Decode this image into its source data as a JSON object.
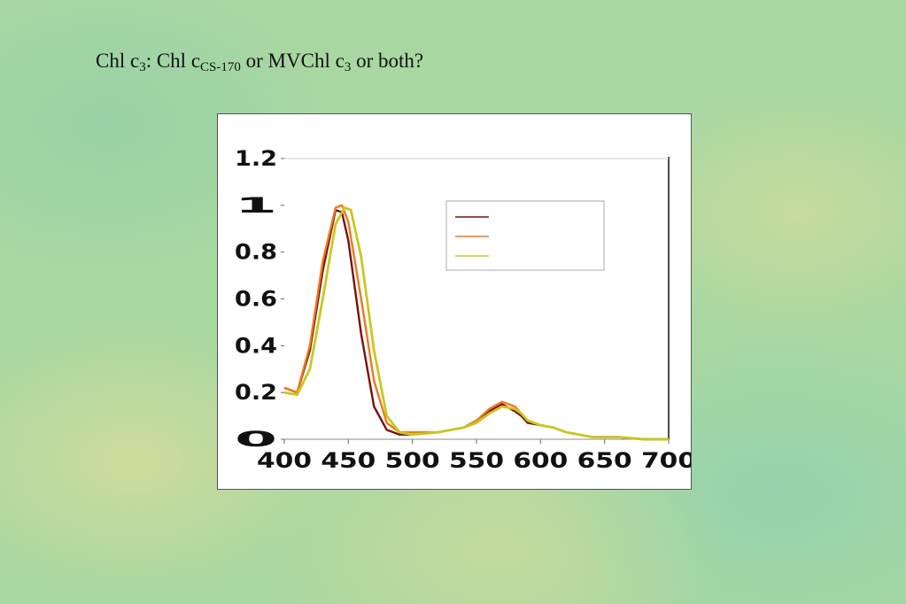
{
  "title": {
    "prefix": "Chl c",
    "sub1": "3",
    "mid": ": Chl c",
    "sub2": "CS-170",
    "mid2": " or MVChl c",
    "sub3": "3",
    "suffix": " or both?"
  },
  "chart_data": {
    "type": "line",
    "title": "",
    "xlabel": "",
    "ylabel": "",
    "xlim": [
      400,
      700
    ],
    "ylim": [
      0,
      1.2
    ],
    "x_ticks": [
      "400",
      "450",
      "500",
      "550",
      "600",
      "650",
      "700"
    ],
    "y_ticks": [
      "0",
      "0.2",
      "0.4",
      "0.6",
      "0.8",
      "1",
      "1.2"
    ],
    "grid": false,
    "legend_position": "top-right",
    "series": [
      {
        "color": "#7a1010",
        "x": [
          400,
          410,
          420,
          430,
          440,
          445,
          450,
          460,
          470,
          480,
          490,
          500,
          520,
          540,
          550,
          560,
          570,
          580,
          585,
          590,
          600,
          610,
          620,
          630,
          640,
          650,
          660,
          680,
          700
        ],
        "y": [
          0.22,
          0.2,
          0.38,
          0.72,
          0.98,
          0.97,
          0.85,
          0.45,
          0.14,
          0.04,
          0.02,
          0.02,
          0.03,
          0.05,
          0.08,
          0.12,
          0.15,
          0.12,
          0.1,
          0.07,
          0.06,
          0.05,
          0.03,
          0.02,
          0.01,
          0.01,
          0.01,
          0.0,
          0.0
        ]
      },
      {
        "color": "#f07820",
        "x": [
          400,
          410,
          420,
          430,
          440,
          445,
          450,
          460,
          470,
          480,
          490,
          500,
          520,
          540,
          550,
          560,
          570,
          580,
          585,
          590,
          600,
          610,
          620,
          630,
          640,
          650,
          660,
          680,
          700
        ],
        "y": [
          0.22,
          0.2,
          0.4,
          0.76,
          0.99,
          1.0,
          0.93,
          0.6,
          0.25,
          0.07,
          0.03,
          0.03,
          0.03,
          0.05,
          0.08,
          0.13,
          0.16,
          0.14,
          0.11,
          0.08,
          0.06,
          0.05,
          0.03,
          0.02,
          0.01,
          0.01,
          0.01,
          0.0,
          0.0
        ]
      },
      {
        "color": "#c8c81e",
        "x": [
          400,
          410,
          420,
          430,
          440,
          447,
          452,
          460,
          470,
          480,
          490,
          500,
          520,
          540,
          550,
          560,
          570,
          580,
          585,
          590,
          600,
          610,
          620,
          630,
          640,
          650,
          660,
          680,
          700
        ],
        "y": [
          0.2,
          0.19,
          0.3,
          0.6,
          0.92,
          0.99,
          0.98,
          0.78,
          0.38,
          0.1,
          0.03,
          0.02,
          0.03,
          0.05,
          0.07,
          0.11,
          0.14,
          0.13,
          0.11,
          0.08,
          0.06,
          0.05,
          0.03,
          0.02,
          0.01,
          0.01,
          0.01,
          0.0,
          0.0
        ]
      }
    ]
  }
}
